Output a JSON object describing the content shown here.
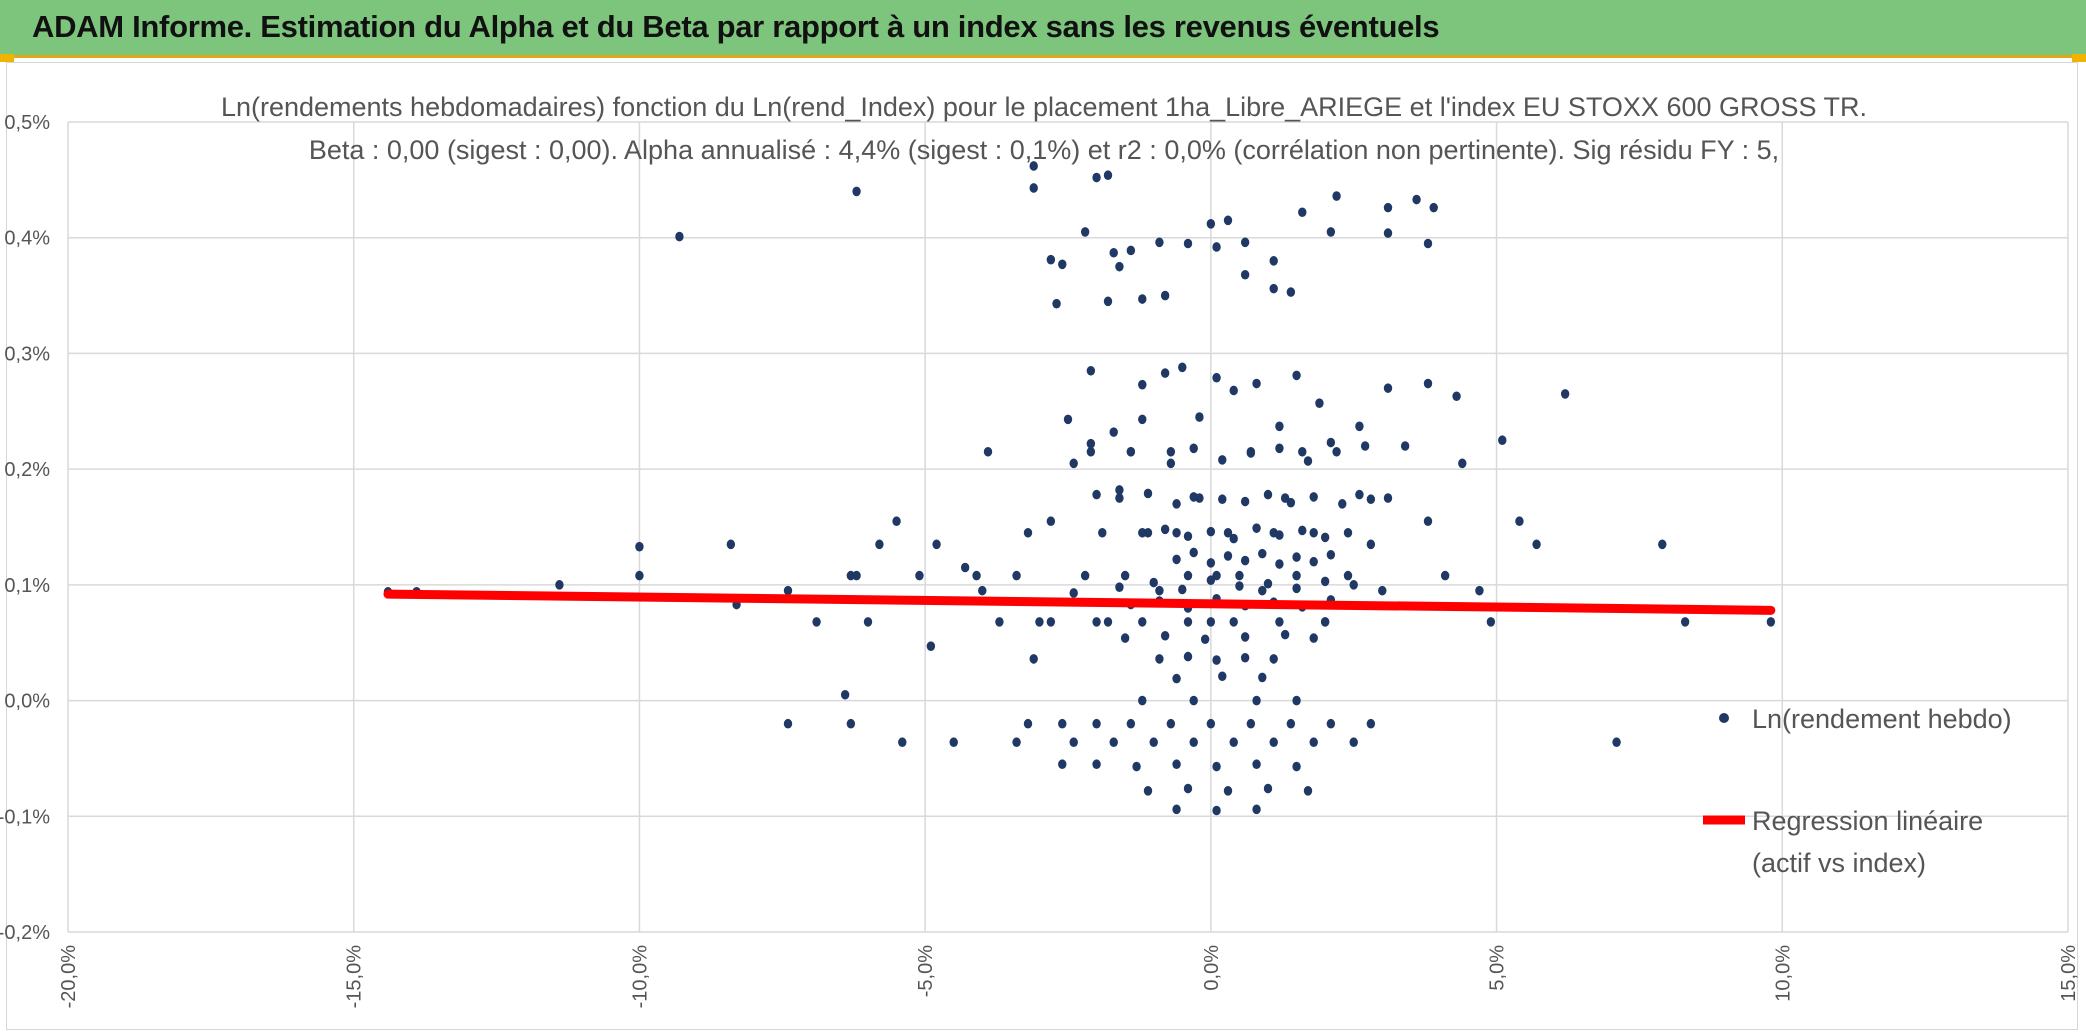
{
  "header": {
    "title": "ADAM Informe. Estimation du Alpha et du Beta par rapport à un index sans les revenus éventuels"
  },
  "colors": {
    "banner": "#7dc57d",
    "points": "#1f3864",
    "regression": "#ff0000",
    "grid": "#d9d9d9",
    "text": "#555555"
  },
  "chart_data": {
    "type": "scatter",
    "title_line1": "Ln(rendements hebdomadaires) fonction du Ln(rend_Index) pour le placement 1ha_Libre_ARIEGE et l'index EU STOXX 600 GROSS TR.",
    "title_line2": "Beta : 0,00 (sigest : 0,00). Alpha annualisé : 4,4% (sigest : 0,1%) et r2 : 0,0% (corrélation non pertinente). Sig résidu FY : 5,",
    "xlim": [
      -0.2,
      0.15
    ],
    "ylim": [
      -0.002,
      0.005
    ],
    "x_ticks": [
      -0.2,
      -0.15,
      -0.1,
      -0.05,
      0.0,
      0.05,
      0.1,
      0.15
    ],
    "x_tick_labels": [
      "-20,0%",
      "-15,0%",
      "-10,0%",
      "-5,0%",
      "0,0%",
      "5,0%",
      "10,0%",
      "15,0%"
    ],
    "y_ticks": [
      -0.002,
      -0.001,
      0.0,
      0.001,
      0.002,
      0.003,
      0.004,
      0.005
    ],
    "y_tick_labels": [
      "-0,2%",
      "-0,1%",
      "0,0%",
      "0,1%",
      "0,2%",
      "0,3%",
      "0,4%",
      "0,5%"
    ],
    "grid": true,
    "legend": {
      "position": "right",
      "scatter_label": "Ln(rendement hebdo)",
      "line_label_1": "Regression linéaire",
      "line_label_2": "(actif vs index)"
    },
    "regression": {
      "x": [
        -0.144,
        0.098
      ],
      "y": [
        0.00092,
        0.00078
      ]
    },
    "series": [
      {
        "name": "Ln(rendement hebdo)",
        "x": [
          -0.144,
          -0.139,
          -0.114,
          -0.1,
          -0.1,
          -0.084,
          -0.083,
          -0.093,
          -0.074,
          -0.074,
          -0.069,
          -0.064,
          -0.063,
          -0.063,
          -0.062,
          -0.06,
          -0.058,
          -0.055,
          -0.054,
          -0.051,
          -0.049,
          -0.048,
          -0.045,
          -0.043,
          -0.041,
          -0.04,
          -0.039,
          -0.037,
          -0.034,
          -0.034,
          -0.032,
          -0.031,
          -0.03,
          -0.028,
          -0.026,
          -0.024,
          -0.022,
          -0.021,
          -0.019,
          -0.018,
          -0.016,
          -0.015,
          -0.014,
          -0.012,
          -0.011,
          -0.009,
          -0.007,
          -0.006,
          -0.004,
          -0.002,
          0.0,
          0.001,
          0.003,
          0.005,
          0.007,
          0.009,
          0.011,
          0.013,
          0.015,
          0.016,
          0.018,
          0.02,
          0.022,
          0.024,
          0.026,
          0.028,
          0.031,
          0.034,
          0.038,
          0.041,
          0.044,
          0.047,
          0.049,
          0.051,
          0.054,
          0.057,
          0.062,
          0.071,
          0.079,
          0.083,
          0.098,
          -0.062,
          -0.031,
          -0.027,
          -0.022,
          -0.018,
          -0.014,
          -0.009,
          -0.004,
          0.001,
          0.006,
          0.011,
          0.016,
          0.021,
          0.031,
          0.036,
          0.039,
          -0.031,
          -0.028,
          -0.026,
          -0.02,
          -0.018,
          -0.017,
          -0.016,
          -0.012,
          -0.008,
          0.0,
          0.003,
          0.006,
          0.011,
          0.014,
          0.022,
          0.031,
          0.038,
          -0.025,
          -0.021,
          -0.017,
          -0.012,
          -0.008,
          -0.005,
          -0.002,
          0.001,
          0.004,
          0.008,
          0.012,
          0.015,
          0.019,
          0.026,
          0.031,
          0.038,
          0.043,
          -0.024,
          -0.021,
          -0.014,
          -0.007,
          -0.003,
          0.002,
          0.007,
          0.012,
          0.017,
          0.021,
          0.027,
          -0.02,
          -0.016,
          -0.011,
          -0.006,
          -0.003,
          0.002,
          0.006,
          0.01,
          0.014,
          0.018,
          0.023,
          0.028,
          -0.012,
          -0.008,
          -0.004,
          0.0,
          0.004,
          0.008,
          0.012,
          0.016,
          0.02,
          0.024,
          -0.006,
          -0.003,
          0.0,
          0.003,
          0.006,
          0.009,
          0.012,
          0.015,
          0.018,
          0.021,
          -0.016,
          -0.01,
          -0.005,
          0.0,
          0.005,
          0.01,
          0.015,
          0.02,
          0.025,
          0.03,
          -0.014,
          -0.009,
          -0.004,
          0.001,
          0.006,
          0.011,
          0.016,
          0.021,
          -0.028,
          -0.02,
          -0.012,
          -0.004,
          0.004,
          0.012,
          0.02,
          -0.015,
          -0.008,
          -0.001,
          0.006,
          0.013,
          0.018,
          -0.009,
          -0.004,
          0.001,
          0.006,
          0.011,
          -0.006,
          0.002,
          0.009,
          -0.012,
          -0.003,
          0.008,
          0.015,
          -0.032,
          -0.026,
          -0.02,
          -0.014,
          -0.007,
          0.0,
          0.007,
          0.014,
          0.021,
          0.028,
          -0.024,
          -0.017,
          -0.01,
          -0.003,
          0.004,
          0.011,
          0.018,
          0.025,
          -0.02,
          -0.013,
          -0.006,
          0.001,
          0.008,
          0.015,
          -0.011,
          -0.004,
          0.003,
          0.01,
          0.017,
          -0.006,
          0.001,
          0.008
        ],
        "y": [
          0.00094,
          0.00094,
          0.001,
          0.00108,
          0.00133,
          0.00135,
          0.00083,
          0.00401,
          0.00095,
          -0.0002,
          0.00068,
          5e-05,
          -0.0002,
          0.00108,
          0.0044,
          0.00068,
          0.00135,
          0.00155,
          -0.00036,
          0.00108,
          0.00047,
          0.00135,
          -0.00036,
          0.00115,
          0.00108,
          0.00095,
          0.00215,
          0.00068,
          0.00108,
          -0.00036,
          0.00145,
          0.00036,
          0.00068,
          0.00155,
          -0.00055,
          0.00093,
          0.00108,
          0.00215,
          0.00145,
          0.00068,
          0.00175,
          0.00108,
          0.00215,
          0.00243,
          0.00145,
          0.00095,
          0.00215,
          0.00145,
          0.00108,
          0.00175,
          0.00068,
          0.00108,
          0.00145,
          0.00108,
          0.00215,
          0.00095,
          0.00145,
          0.00175,
          0.00108,
          0.00215,
          0.00145,
          0.00068,
          0.00215,
          0.00108,
          0.00178,
          0.00135,
          0.00175,
          0.0022,
          0.00155,
          0.00108,
          0.00205,
          0.00095,
          0.00068,
          0.00225,
          0.00155,
          0.00135,
          0.00265,
          -0.00036,
          0.00135,
          0.00068,
          0.00068,
          0.00108,
          0.00462,
          0.00343,
          0.00405,
          0.00345,
          0.00389,
          0.00396,
          0.00395,
          0.00392,
          0.00368,
          0.00356,
          0.00422,
          0.00405,
          0.00426,
          0.00433,
          0.00426,
          0.00443,
          0.00381,
          0.00377,
          0.00452,
          0.00454,
          0.00387,
          0.00375,
          0.00347,
          0.0035,
          0.00412,
          0.00415,
          0.00396,
          0.0038,
          0.00353,
          0.00436,
          0.00404,
          0.00395,
          0.00243,
          0.00285,
          0.00232,
          0.00273,
          0.00283,
          0.00288,
          0.00245,
          0.00279,
          0.00268,
          0.00274,
          0.00237,
          0.00281,
          0.00257,
          0.00237,
          0.0027,
          0.00274,
          0.00263,
          0.00205,
          0.00222,
          0.00215,
          0.00205,
          0.00218,
          0.00208,
          0.00214,
          0.00218,
          0.00207,
          0.00223,
          0.0022,
          0.00178,
          0.00182,
          0.00179,
          0.0017,
          0.00176,
          0.00174,
          0.00172,
          0.00178,
          0.00171,
          0.00176,
          0.0017,
          0.00174,
          0.00145,
          0.00148,
          0.00142,
          0.00146,
          0.0014,
          0.00149,
          0.00143,
          0.00147,
          0.00141,
          0.00145,
          0.00122,
          0.00128,
          0.00119,
          0.00125,
          0.00121,
          0.00127,
          0.00118,
          0.00124,
          0.0012,
          0.00126,
          0.00098,
          0.00102,
          0.00096,
          0.00104,
          0.00099,
          0.00101,
          0.00097,
          0.00103,
          0.001,
          0.00095,
          0.00083,
          0.00086,
          0.0008,
          0.00088,
          0.00082,
          0.00085,
          0.00081,
          0.00087,
          0.00068,
          0.00068,
          0.00068,
          0.00068,
          0.00068,
          0.00068,
          0.00068,
          0.00054,
          0.00056,
          0.00053,
          0.00055,
          0.00057,
          0.00054,
          0.00036,
          0.00038,
          0.00035,
          0.00037,
          0.00036,
          0.00019,
          0.00021,
          0.0002,
          0.0,
          0.0,
          0.0,
          0.0,
          -0.0002,
          -0.0002,
          -0.0002,
          -0.0002,
          -0.0002,
          -0.0002,
          -0.0002,
          -0.0002,
          -0.0002,
          -0.0002,
          -0.00036,
          -0.00036,
          -0.00036,
          -0.00036,
          -0.00036,
          -0.00036,
          -0.00036,
          -0.00036,
          -0.00055,
          -0.00057,
          -0.00055,
          -0.00057,
          -0.00055,
          -0.00057,
          -0.00078,
          -0.00076,
          -0.00078,
          -0.00076,
          -0.00078,
          -0.00094,
          -0.00095,
          -0.00094
        ]
      }
    ]
  }
}
